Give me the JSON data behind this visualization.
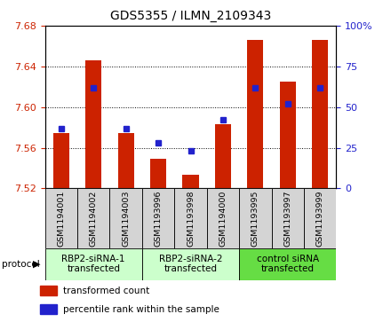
{
  "title": "GDS5355 / ILMN_2109343",
  "samples": [
    "GSM1194001",
    "GSM1194002",
    "GSM1194003",
    "GSM1193996",
    "GSM1193998",
    "GSM1194000",
    "GSM1193995",
    "GSM1193997",
    "GSM1193999"
  ],
  "red_values": [
    7.574,
    7.646,
    7.574,
    7.549,
    7.533,
    7.583,
    7.666,
    7.625,
    7.666
  ],
  "blue_values": [
    37,
    62,
    37,
    28,
    23,
    42,
    62,
    52,
    62
  ],
  "ylim": [
    7.52,
    7.68
  ],
  "y2lim": [
    0,
    100
  ],
  "yticks": [
    7.52,
    7.56,
    7.6,
    7.64,
    7.68
  ],
  "y2ticks": [
    0,
    25,
    50,
    75,
    100
  ],
  "y2ticklabels": [
    "0",
    "25",
    "50",
    "75",
    "100%"
  ],
  "group_colors": [
    "#ccffcc",
    "#ccffcc",
    "#66dd44"
  ],
  "group_labels": [
    "RBP2-siRNA-1\ntransfected",
    "RBP2-siRNA-2\ntransfected",
    "control siRNA\ntransfected"
  ],
  "group_ranges": [
    [
      0,
      3
    ],
    [
      3,
      6
    ],
    [
      6,
      9
    ]
  ],
  "bar_color": "#cc2200",
  "marker_color": "#2222cc",
  "ybase": 7.52,
  "legend_red": "transformed count",
  "legend_blue": "percentile rank within the sample",
  "left_tick_color": "#cc2200",
  "right_tick_color": "#2222cc",
  "protocol_label": "protocol",
  "sample_bg": "#d4d4d4",
  "bar_width": 0.5
}
